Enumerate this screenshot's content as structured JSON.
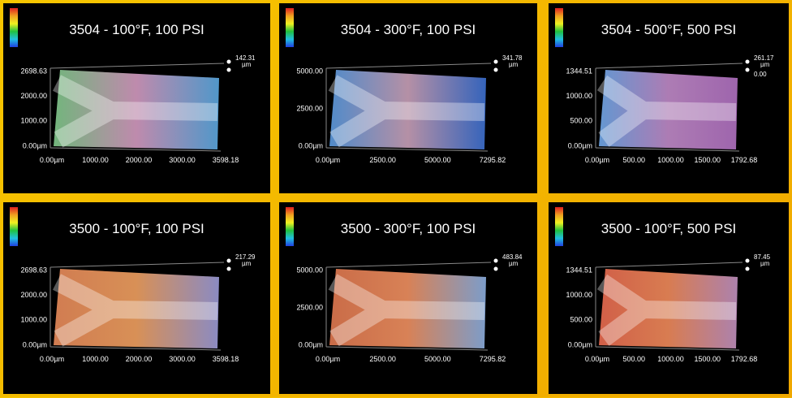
{
  "panels": [
    {
      "title": "3504 - 100°F, 100 PSI",
      "y_labels": [
        "2698.63",
        "2000.00",
        "1000.00",
        "0.00µm"
      ],
      "x_labels": [
        "0.00µm",
        "1000.00",
        "2000.00",
        "3000.00",
        "3598.18"
      ],
      "z_labels": [
        "142.31",
        "µm"
      ]
    },
    {
      "title": "3504 - 300°F, 100 PSI",
      "y_labels": [
        "5000.00",
        "2500.00",
        "0.00µm"
      ],
      "x_labels": [
        "0.00µm",
        "2500.00",
        "5000.00",
        "7295.82"
      ],
      "z_labels": [
        "341.78",
        "µm"
      ]
    },
    {
      "title": "3504 - 500°F, 500 PSI",
      "y_labels": [
        "1344.51",
        "1000.00",
        "500.00",
        "0.00µm"
      ],
      "x_labels": [
        "0.00µm",
        "500.00",
        "1000.00",
        "1500.00",
        "1792.68"
      ],
      "z_labels": [
        "261.17",
        "µm",
        "0.00"
      ]
    },
    {
      "title": "3500 - 100°F, 100 PSI",
      "y_labels": [
        "2698.63",
        "2000.00",
        "1000.00",
        "0.00µm"
      ],
      "x_labels": [
        "0.00µm",
        "1000.00",
        "2000.00",
        "3000.00",
        "3598.18"
      ],
      "z_labels": [
        "217.29",
        "µm"
      ]
    },
    {
      "title": "3500 - 300°F, 100 PSI",
      "y_labels": [
        "5000.00",
        "2500.00",
        "0.00µm"
      ],
      "x_labels": [
        "0.00µm",
        "2500.00",
        "5000.00",
        "7295.82"
      ],
      "z_labels": [
        "483.84",
        "µm"
      ]
    },
    {
      "title": "3500 - 100°F, 500 PSI",
      "y_labels": [
        "1344.51",
        "1000.00",
        "500.00",
        "0.00µm"
      ],
      "x_labels": [
        "0.00µm",
        "500.00",
        "1000.00",
        "1500.00",
        "1792.68"
      ],
      "z_labels": [
        "87.45",
        "µm"
      ]
    }
  ]
}
